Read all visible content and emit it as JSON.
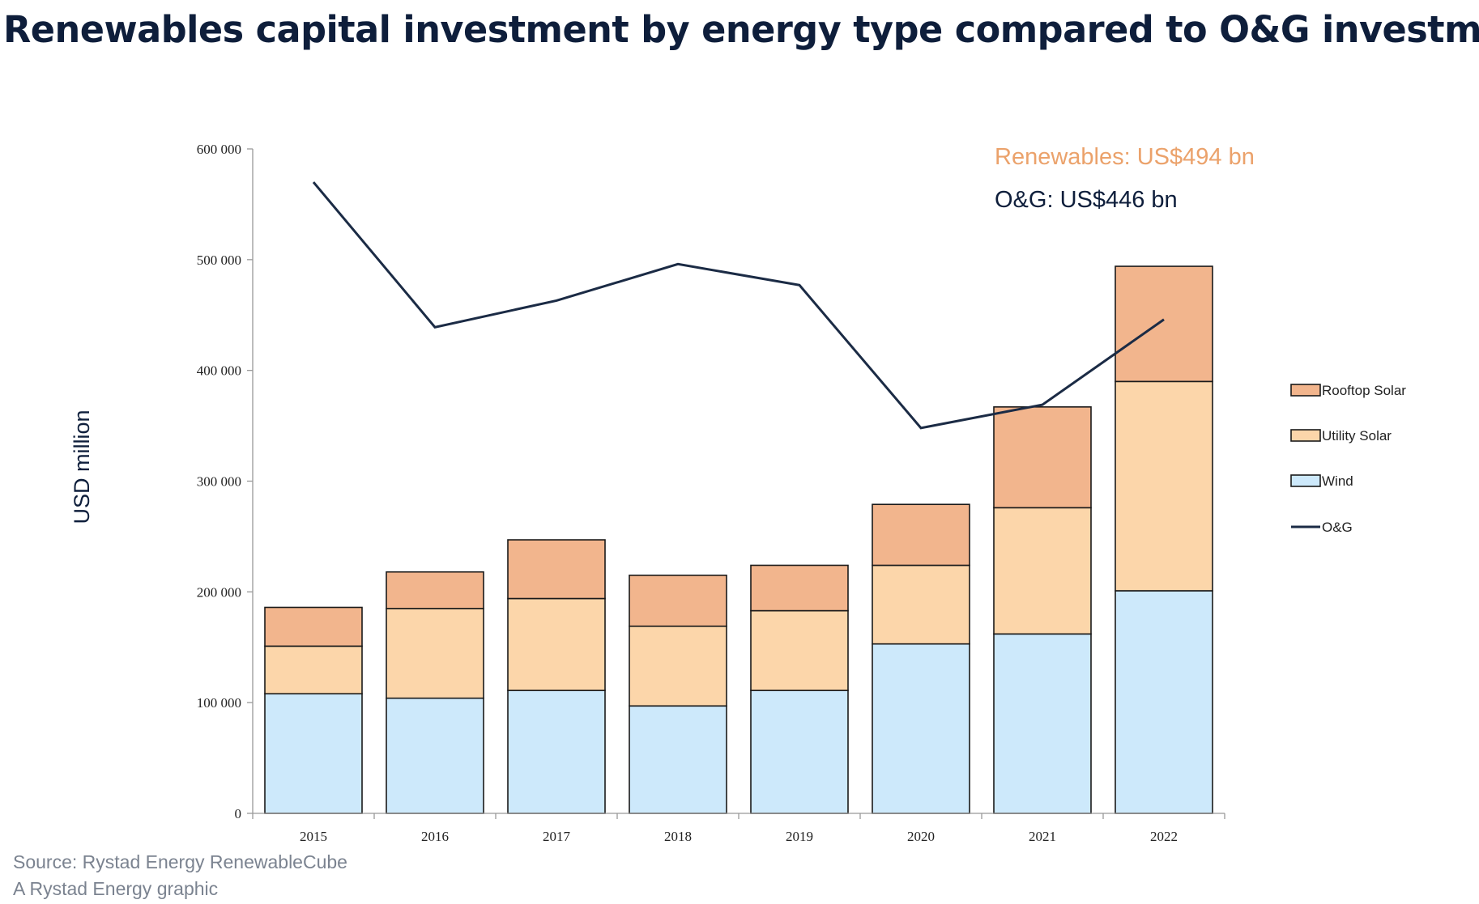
{
  "title": "Renewables capital investment by energy type compared to O&G investment",
  "footer": {
    "source": "Source: Rystad Energy RenewableCube",
    "credit": "A Rystad Energy graphic"
  },
  "colors": {
    "rooftop_solar": "#f2b58d",
    "utility_solar": "#fcd6aa",
    "wind": "#cde9fb",
    "og_line": "#1b2b45",
    "renewables_annotation": "#eba26b",
    "og_annotation": "#0e1e3b"
  },
  "chart_data": {
    "type": "bar",
    "stacked": true,
    "title": "Renewables capital investment by energy type compared to O&G investment",
    "xlabel": "",
    "ylabel": "USD million",
    "ylim": [
      0,
      600000
    ],
    "yticks": [
      0,
      100000,
      200000,
      300000,
      400000,
      500000,
      600000
    ],
    "ytick_labels": [
      "0",
      "100 000",
      "200 000",
      "300 000",
      "400 000",
      "500 000",
      "600 000"
    ],
    "categories": [
      "2015",
      "2016",
      "2017",
      "2018",
      "2019",
      "2020",
      "2021",
      "2022"
    ],
    "series": [
      {
        "name": "Wind",
        "values": [
          108000,
          104000,
          111000,
          97000,
          111000,
          153000,
          162000,
          201000
        ]
      },
      {
        "name": "Utility Solar",
        "values": [
          43000,
          81000,
          83000,
          72000,
          72000,
          71000,
          114000,
          189000
        ]
      },
      {
        "name": "Rooftop Solar",
        "values": [
          35000,
          33000,
          53000,
          46000,
          41000,
          55000,
          91000,
          104000
        ]
      }
    ],
    "line_series": {
      "name": "O&G",
      "values": [
        570000,
        439000,
        463000,
        496000,
        477000,
        348000,
        369000,
        446000
      ]
    },
    "annotations": {
      "renewables": "Renewables: US$494 bn",
      "og": "O&G: US$446 bn"
    },
    "legend": {
      "placement": "right",
      "entries": [
        "Rooftop Solar",
        "Utility Solar",
        "Wind",
        "O&G"
      ]
    },
    "grid": false
  }
}
